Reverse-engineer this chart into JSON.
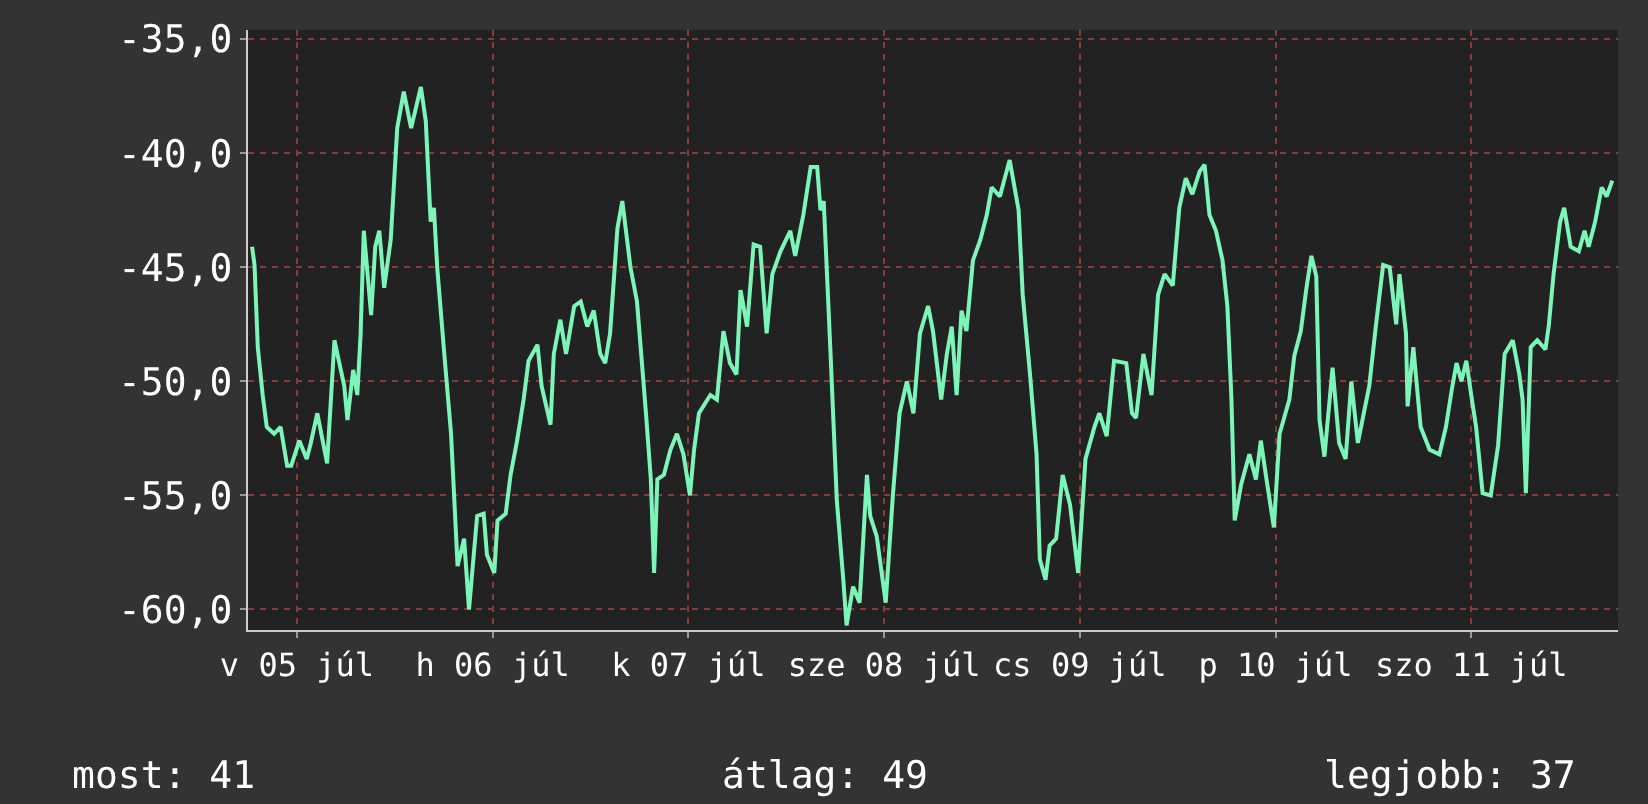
{
  "chart_data": {
    "type": "line",
    "x": [
      "--07-04T18:30",
      "--07-04T18:48",
      "--07-04T19:12",
      "--07-04T19:48",
      "--07-04T20:18",
      "--07-04T21:12",
      "--07-04T22:00",
      "--07-04T22:48",
      "--07-04T23:18",
      "--07-05T00:18",
      "--07-05T01:12",
      "--07-05T01:42",
      "--07-05T02:30",
      "--07-05T03:42",
      "--07-05T04:36",
      "--07-05T05:48",
      "--07-05T06:12",
      "--07-05T06:54",
      "--07-05T07:24",
      "--07-05T07:48",
      "--07-05T08:12",
      "--07-05T09:06",
      "--07-05T09:36",
      "--07-05T10:06",
      "--07-05T10:42",
      "--07-05T11:30",
      "--07-05T12:18",
      "--07-05T13:06",
      "--07-05T14:00",
      "--07-05T15:12",
      "--07-05T15:48",
      "--07-05T16:24",
      "--07-05T16:48",
      "--07-05T17:12",
      "--07-05T18:00",
      "--07-05T18:54",
      "--07-05T19:42",
      "--07-05T20:30",
      "--07-05T21:06",
      "--07-05T22:06",
      "--07-05T22:54",
      "--07-05T23:18",
      "--07-06T00:12",
      "--07-06T00:36",
      "--07-06T01:36",
      "--07-06T02:12",
      "--07-06T03:00",
      "--07-06T03:48",
      "--07-06T04:24",
      "--07-06T05:30",
      "--07-06T06:00",
      "--07-06T07:06",
      "--07-06T07:30",
      "--07-06T08:18",
      "--07-06T09:00",
      "--07-06T10:00",
      "--07-06T10:48",
      "--07-06T11:36",
      "--07-06T12:24",
      "--07-06T13:12",
      "--07-06T13:48",
      "--07-06T14:24",
      "--07-06T15:18",
      "--07-06T15:54",
      "--07-06T16:54",
      "--07-06T17:42",
      "--07-06T18:48",
      "--07-06T19:24",
      "--07-06T19:48",
      "--07-06T20:12",
      "--07-06T21:00",
      "--07-06T21:48",
      "--07-06T22:36",
      "--07-06T23:24",
      "--07-07T00:12",
      "--07-07T00:42",
      "--07-07T01:18",
      "--07-07T02:42",
      "--07-07T03:30",
      "--07-07T04:18",
      "--07-07T05:06",
      "--07-07T05:54",
      "--07-07T06:24",
      "--07-07T07:12",
      "--07-07T08:00",
      "--07-07T08:48",
      "--07-07T09:36",
      "--07-07T10:18",
      "--07-07T11:18",
      "--07-07T12:30",
      "--07-07T13:06",
      "--07-07T14:06",
      "--07-07T15:00",
      "--07-07T15:48",
      "--07-07T16:12",
      "--07-07T16:36",
      "--07-07T17:24",
      "--07-07T18:12",
      "--07-07T19:00",
      "--07-07T19:24",
      "--07-07T20:12",
      "--07-07T21:00",
      "--07-07T21:54",
      "--07-07T22:18",
      "--07-07T23:06",
      "--07-08T00:12",
      "--07-08T01:06",
      "--07-08T01:54",
      "--07-08T02:48",
      "--07-08T03:36",
      "--07-08T04:24",
      "--07-08T05:24",
      "--07-08T06:00",
      "--07-08T07:00",
      "--07-08T07:42",
      "--07-08T08:18",
      "--07-08T08:54",
      "--07-08T09:30",
      "--07-08T10:06",
      "--07-08T10:54",
      "--07-08T11:48",
      "--07-08T12:36",
      "--07-08T13:12",
      "--07-08T14:12",
      "--07-08T15:24",
      "--07-08T16:30",
      "--07-08T17:00",
      "--07-08T17:54",
      "--07-08T18:42",
      "--07-08T19:06",
      "--07-08T19:48",
      "--07-08T20:18",
      "--07-08T21:06",
      "--07-08T21:54",
      "--07-08T22:48",
      "--07-08T23:48",
      "--07-09T00:42",
      "--07-09T01:48",
      "--07-09T02:24",
      "--07-09T03:18",
      "--07-09T04:12",
      "--07-09T05:42",
      "--07-09T06:24",
      "--07-09T06:54",
      "--07-09T07:48",
      "--07-09T08:48",
      "--07-09T09:36",
      "--07-09T10:24",
      "--07-09T11:24",
      "--07-09T12:12",
      "--07-09T13:00",
      "--07-09T13:48",
      "--07-09T14:42",
      "--07-09T15:18",
      "--07-09T15:54",
      "--07-09T16:42",
      "--07-09T17:30",
      "--07-09T18:06",
      "--07-09T18:36",
      "--07-09T19:00",
      "--07-09T19:48",
      "--07-09T20:48",
      "--07-09T21:36",
      "--07-09T22:12",
      "--07-09T22:54",
      "--07-09T23:48",
      "--07-10T00:30",
      "--07-10T01:42",
      "--07-10T02:18",
      "--07-10T03:06",
      "--07-10T03:48",
      "--07-10T04:24",
      "--07-10T05:00",
      "--07-10T05:24",
      "--07-10T06:00",
      "--07-10T07:00",
      "--07-10T07:48",
      "--07-10T08:36",
      "--07-10T09:18",
      "--07-10T10:06",
      "--07-10T11:30",
      "--07-10T12:18",
      "--07-10T13:12",
      "--07-10T14:00",
      "--07-10T14:48",
      "--07-10T15:12",
      "--07-10T16:00",
      "--07-10T16:12",
      "--07-10T16:54",
      "--07-10T17:48",
      "--07-10T18:54",
      "--07-10T20:06",
      "--07-10T20:54",
      "--07-10T21:36",
      "--07-10T22:12",
      "--07-10T22:48",
      "--07-10T23:24",
      "--07-11T00:00",
      "--07-11T00:36",
      "--07-11T01:24",
      "--07-11T02:24",
      "--07-11T03:18",
      "--07-11T04:06",
      "--07-11T05:06",
      "--07-11T05:54",
      "--07-11T06:18",
      "--07-11T06:42",
      "--07-11T07:18",
      "--07-11T08:06",
      "--07-11T09:06",
      "--07-11T09:30",
      "--07-11T10:06",
      "--07-11T10:54",
      "--07-11T11:24",
      "--07-11T12:12",
      "--07-11T13:12",
      "--07-11T13:54",
      "--07-11T14:24",
      "--07-11T15:12",
      "--07-11T16:00",
      "--07-11T16:36",
      "--07-11T17:18"
    ],
    "values": [
      -44.1,
      -44.9,
      -48.5,
      -50.6,
      -52.0,
      -52.3,
      -52.0,
      -53.7,
      -53.7,
      -52.6,
      -53.4,
      -52.7,
      -51.4,
      -53.6,
      -48.2,
      -50.2,
      -51.7,
      -49.5,
      -50.6,
      -48.0,
      -43.4,
      -47.1,
      -44.1,
      -43.4,
      -45.9,
      -43.8,
      -38.9,
      -37.3,
      -38.9,
      -37.1,
      -38.6,
      -43.0,
      -42.4,
      -45.0,
      -48.5,
      -52.3,
      -58.1,
      -56.9,
      -60.0,
      -55.9,
      -55.8,
      -57.6,
      -58.4,
      -56.1,
      -55.8,
      -54.1,
      -52.6,
      -50.8,
      -49.1,
      -48.4,
      -50.2,
      -51.9,
      -48.8,
      -47.3,
      -48.8,
      -46.7,
      -46.5,
      -47.6,
      -46.9,
      -48.8,
      -49.2,
      -47.9,
      -43.3,
      -42.1,
      -45.0,
      -46.5,
      -51.4,
      -54.3,
      -58.4,
      -54.3,
      -54.1,
      -53.0,
      -52.3,
      -53.2,
      -55.0,
      -53.0,
      -51.4,
      -50.6,
      -50.8,
      -47.8,
      -49.2,
      -49.7,
      -46.0,
      -47.6,
      -44.0,
      -44.1,
      -47.9,
      -45.3,
      -44.3,
      -43.4,
      -44.5,
      -42.7,
      -40.6,
      -40.6,
      -42.5,
      -42.1,
      -48.5,
      -55.2,
      -58.7,
      -60.7,
      -59.0,
      -59.7,
      -54.1,
      -55.9,
      -56.8,
      -59.7,
      -54.9,
      -51.4,
      -50.0,
      -51.4,
      -47.9,
      -46.7,
      -47.8,
      -50.8,
      -48.8,
      -47.6,
      -50.6,
      -46.9,
      -47.8,
      -44.7,
      -43.8,
      -42.7,
      -41.5,
      -41.9,
      -40.3,
      -42.5,
      -46.2,
      -49.7,
      -53.2,
      -57.8,
      -58.7,
      -57.2,
      -56.9,
      -54.1,
      -55.4,
      -58.4,
      -53.4,
      -52.0,
      -51.4,
      -52.4,
      -49.1,
      -49.2,
      -51.4,
      -51.6,
      -48.8,
      -50.6,
      -46.2,
      -45.3,
      -45.8,
      -42.4,
      -41.1,
      -41.8,
      -40.8,
      -40.5,
      -42.7,
      -43.4,
      -44.7,
      -46.7,
      -50.8,
      -56.1,
      -54.5,
      -53.2,
      -54.3,
      -52.6,
      -54.3,
      -56.4,
      -52.3,
      -50.8,
      -48.9,
      -47.8,
      -45.9,
      -44.5,
      -45.4,
      -51.7,
      -53.3,
      -49.4,
      -52.7,
      -53.4,
      -50.0,
      -52.7,
      -50.2,
      -47.6,
      -44.9,
      -45.0,
      -47.5,
      -45.3,
      -47.9,
      -51.1,
      -48.5,
      -52.0,
      -53.0,
      -53.2,
      -52.0,
      -50.4,
      -49.2,
      -50.0,
      -49.1,
      -50.6,
      -52.0,
      -54.9,
      -55.0,
      -52.8,
      -48.8,
      -48.2,
      -49.7,
      -50.8,
      -54.9,
      -48.5,
      -48.2,
      -48.6,
      -47.6,
      -45.3,
      -43.0,
      -42.4,
      -44.1,
      -44.3,
      -43.4,
      -44.1,
      -43.0,
      -41.5,
      -41.9,
      -41.2
    ],
    "color": "#7cf5b8",
    "xlim": [
      "--07-04T18:00",
      "--07-11T18:00"
    ],
    "xticks": [
      {
        "value": "--07-05",
        "label": "v 05 júl"
      },
      {
        "value": "--07-06",
        "label": "h 06 júl"
      },
      {
        "value": "--07-07",
        "label": "k 07 júl"
      },
      {
        "value": "--07-08",
        "label": "sze 08 júl"
      },
      {
        "value": "--07-09",
        "label": "cs 09 júl"
      },
      {
        "value": "--07-10",
        "label": "p 10 júl"
      },
      {
        "value": "--07-11",
        "label": "szo 11 júl"
      }
    ],
    "ylim": [
      -60.9,
      -34.6
    ],
    "yticks": [
      {
        "value": -60,
        "label": "-60,0"
      },
      {
        "value": -55,
        "label": "-55,0"
      },
      {
        "value": -50,
        "label": "-50,0"
      },
      {
        "value": -45,
        "label": "-45,0"
      },
      {
        "value": -40,
        "label": "-40,0"
      },
      {
        "value": -35,
        "label": "-35,0"
      }
    ],
    "grid": true,
    "annotations": [
      "most: 41",
      "átlag: 49",
      "legjobb: 37"
    ]
  }
}
